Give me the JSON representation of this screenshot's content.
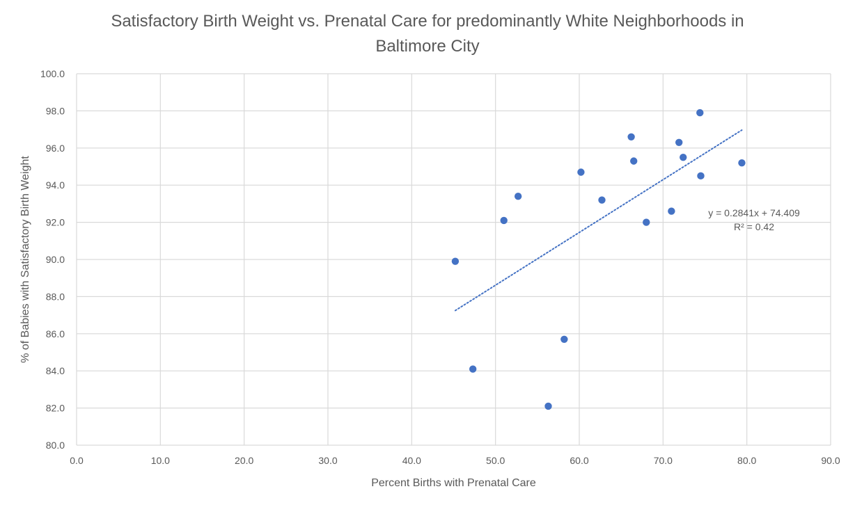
{
  "chart_data": {
    "type": "scatter",
    "title_lines": [
      "Satisfactory Birth Weight vs. Prenatal Care for predominantly White Neighborhoods in",
      "Baltimore City"
    ],
    "xlabel": "Percent Births with Prenatal Care",
    "ylabel": "% of Babies with Satisfactory Birth Weight",
    "xlim": [
      0,
      90
    ],
    "ylim": [
      80,
      100
    ],
    "x_ticks": [
      "0.0",
      "10.0",
      "20.0",
      "30.0",
      "40.0",
      "50.0",
      "60.0",
      "70.0",
      "80.0",
      "90.0"
    ],
    "y_ticks": [
      "80.0",
      "82.0",
      "84.0",
      "86.0",
      "88.0",
      "90.0",
      "92.0",
      "94.0",
      "96.0",
      "98.0",
      "100.0"
    ],
    "grid": true,
    "marker_color": "#4472C4",
    "points": [
      {
        "x": 45.2,
        "y": 89.9
      },
      {
        "x": 47.3,
        "y": 84.1
      },
      {
        "x": 51.0,
        "y": 92.1
      },
      {
        "x": 52.7,
        "y": 93.4
      },
      {
        "x": 56.3,
        "y": 82.1
      },
      {
        "x": 58.2,
        "y": 85.7
      },
      {
        "x": 60.2,
        "y": 94.7
      },
      {
        "x": 62.7,
        "y": 93.2
      },
      {
        "x": 66.2,
        "y": 96.6
      },
      {
        "x": 66.5,
        "y": 95.3
      },
      {
        "x": 68.0,
        "y": 92.0
      },
      {
        "x": 71.0,
        "y": 92.6
      },
      {
        "x": 71.9,
        "y": 96.3
      },
      {
        "x": 72.4,
        "y": 95.5
      },
      {
        "x": 74.4,
        "y": 97.9
      },
      {
        "x": 74.5,
        "y": 94.5
      },
      {
        "x": 79.4,
        "y": 95.2
      }
    ],
    "trendline": {
      "slope": 0.2841,
      "intercept": 74.409,
      "x_range": [
        45.2,
        79.4
      ],
      "equation": "y = 0.2841x + 74.409",
      "r_squared": "R² = 0.42"
    }
  }
}
